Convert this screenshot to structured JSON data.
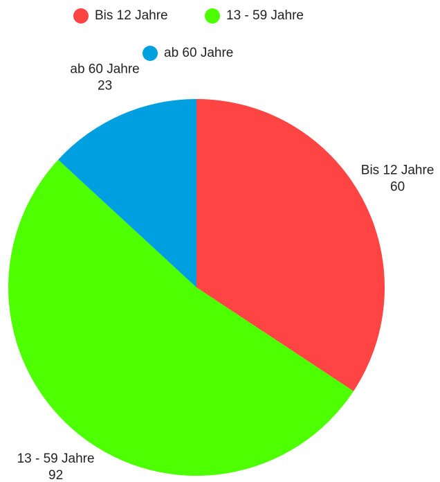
{
  "chart_data": {
    "type": "pie",
    "categories": [
      "Bis 12 Jahre",
      "13 - 59 Jahre",
      "ab 60 Jahre"
    ],
    "values": [
      60,
      92,
      23
    ],
    "colors": [
      "#ff4444",
      "#4dff00",
      "#009fdf"
    ],
    "legend": "top"
  }
}
